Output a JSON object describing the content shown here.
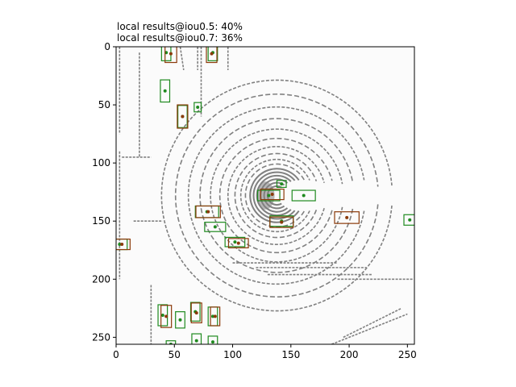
{
  "chart_data": {
    "type": "scatter",
    "title_lines": [
      "local results@iou0.5: 40%",
      "local results@iou0.7: 36%"
    ],
    "xlabel": "",
    "ylabel": "",
    "xlim": [
      0,
      256
    ],
    "ylim": [
      256,
      0
    ],
    "y_axis_inverted": true,
    "x_ticks": [
      0,
      50,
      100,
      150,
      200,
      250
    ],
    "y_ticks": [
      0,
      50,
      100,
      150,
      200,
      250
    ],
    "grid": false,
    "background_color": "#fbfbfb",
    "point_color": "#808080",
    "colors": {
      "ground_truth": "#1f8a1f",
      "prediction": "#c81e0a",
      "prediction_overlap": "#8b3a0a"
    },
    "ground_truth_boxes": [
      {
        "cx": 43,
        "cy": 5,
        "w": 8,
        "h": 14
      },
      {
        "cx": 83,
        "cy": 5,
        "w": 8,
        "h": 14
      },
      {
        "cx": 42,
        "cy": 38,
        "w": 8,
        "h": 19
      },
      {
        "cx": 70,
        "cy": 52,
        "w": 6,
        "h": 8
      },
      {
        "cx": 57,
        "cy": 60,
        "w": 8,
        "h": 19
      },
      {
        "cx": 142,
        "cy": 118,
        "w": 8,
        "h": 6
      },
      {
        "cx": 161,
        "cy": 128,
        "w": 20,
        "h": 9
      },
      {
        "cx": 131,
        "cy": 128,
        "w": 19,
        "h": 9
      },
      {
        "cx": 78,
        "cy": 142,
        "w": 20,
        "h": 10
      },
      {
        "cx": 85,
        "cy": 155,
        "w": 18,
        "h": 8
      },
      {
        "cx": 142,
        "cy": 150,
        "w": 20,
        "h": 9
      },
      {
        "cx": 252,
        "cy": 149,
        "w": 10,
        "h": 9
      },
      {
        "cx": 3,
        "cy": 170,
        "w": 13,
        "h": 9
      },
      {
        "cx": 102,
        "cy": 168,
        "w": 17,
        "h": 8
      },
      {
        "cx": 40,
        "cy": 231,
        "w": 8,
        "h": 18
      },
      {
        "cx": 55,
        "cy": 235,
        "w": 8,
        "h": 14
      },
      {
        "cx": 68,
        "cy": 228,
        "w": 8,
        "h": 16
      },
      {
        "cx": 83,
        "cy": 232,
        "w": 8,
        "h": 16
      },
      {
        "cx": 47,
        "cy": 256,
        "w": 8,
        "h": 6
      },
      {
        "cx": 69,
        "cy": 253,
        "w": 8,
        "h": 12
      },
      {
        "cx": 83,
        "cy": 254,
        "w": 8,
        "h": 10
      }
    ],
    "prediction_boxes": [
      {
        "cx": 47,
        "cy": 6,
        "w": 10,
        "h": 15
      },
      {
        "cx": 82,
        "cy": 6,
        "w": 9,
        "h": 15
      },
      {
        "cx": 57,
        "cy": 60,
        "w": 9,
        "h": 20
      },
      {
        "cx": 134,
        "cy": 127,
        "w": 20,
        "h": 9
      },
      {
        "cx": 79,
        "cy": 142,
        "w": 21,
        "h": 10
      },
      {
        "cx": 142,
        "cy": 151,
        "w": 20,
        "h": 9
      },
      {
        "cx": 198,
        "cy": 147,
        "w": 21,
        "h": 10
      },
      {
        "cx": 5,
        "cy": 170,
        "w": 14,
        "h": 9
      },
      {
        "cx": 105,
        "cy": 169,
        "w": 17,
        "h": 8
      },
      {
        "cx": 43,
        "cy": 232,
        "w": 9,
        "h": 19
      },
      {
        "cx": 69,
        "cy": 229,
        "w": 9,
        "h": 17
      },
      {
        "cx": 85,
        "cy": 232,
        "w": 8,
        "h": 16
      }
    ],
    "lidar_arcs": [
      {
        "cx": 138,
        "cy": 128,
        "r": 8,
        "a0": 60,
        "a1": 300
      },
      {
        "cx": 138,
        "cy": 128,
        "r": 11,
        "a0": 55,
        "a1": 305
      },
      {
        "cx": 138,
        "cy": 128,
        "r": 14,
        "a0": 50,
        "a1": 310
      },
      {
        "cx": 138,
        "cy": 128,
        "r": 17,
        "a0": 45,
        "a1": 315
      },
      {
        "cx": 138,
        "cy": 128,
        "r": 20,
        "a0": 40,
        "a1": 320
      },
      {
        "cx": 138,
        "cy": 128,
        "r": 23,
        "a0": 35,
        "a1": 325
      },
      {
        "cx": 138,
        "cy": 128,
        "r": 27,
        "a0": 30,
        "a1": 330
      },
      {
        "cx": 138,
        "cy": 128,
        "r": 31,
        "a0": 25,
        "a1": 335
      },
      {
        "cx": 138,
        "cy": 128,
        "r": 36,
        "a0": 20,
        "a1": 340
      },
      {
        "cx": 138,
        "cy": 128,
        "r": 42,
        "a0": 15,
        "a1": 345
      },
      {
        "cx": 138,
        "cy": 128,
        "r": 49,
        "a0": 15,
        "a1": 345
      },
      {
        "cx": 138,
        "cy": 128,
        "r": 57,
        "a0": 10,
        "a1": 350
      },
      {
        "cx": 138,
        "cy": 128,
        "r": 66,
        "a0": 10,
        "a1": 350
      },
      {
        "cx": 138,
        "cy": 128,
        "r": 76,
        "a0": 10,
        "a1": 350
      },
      {
        "cx": 138,
        "cy": 128,
        "r": 87,
        "a0": 5,
        "a1": 355
      },
      {
        "cx": 138,
        "cy": 128,
        "r": 99,
        "a0": 5,
        "a1": 355
      }
    ],
    "lidar_lines": [
      {
        "x1": 3,
        "y1": 0,
        "x2": 3,
        "y2": 75
      },
      {
        "x1": 3,
        "y1": 90,
        "x2": 3,
        "y2": 200
      },
      {
        "x1": 20,
        "y1": 5,
        "x2": 20,
        "y2": 95
      },
      {
        "x1": 5,
        "y1": 95,
        "x2": 30,
        "y2": 95
      },
      {
        "x1": 15,
        "y1": 150,
        "x2": 40,
        "y2": 150
      },
      {
        "x1": 70,
        "y1": 0,
        "x2": 70,
        "y2": 20
      },
      {
        "x1": 73,
        "y1": 0,
        "x2": 73,
        "y2": 60
      },
      {
        "x1": 96,
        "y1": 0,
        "x2": 96,
        "y2": 20
      },
      {
        "x1": 100,
        "y1": 186,
        "x2": 190,
        "y2": 186
      },
      {
        "x1": 120,
        "y1": 190,
        "x2": 215,
        "y2": 190
      },
      {
        "x1": 130,
        "y1": 196,
        "x2": 220,
        "y2": 196
      },
      {
        "x1": 190,
        "y1": 200,
        "x2": 255,
        "y2": 200
      },
      {
        "x1": 195,
        "y1": 250,
        "x2": 245,
        "y2": 225
      },
      {
        "x1": 185,
        "y1": 256,
        "x2": 250,
        "y2": 230
      },
      {
        "x1": 30,
        "y1": 205,
        "x2": 30,
        "y2": 256
      },
      {
        "x1": 55,
        "y1": 0,
        "x2": 58,
        "y2": 20
      }
    ]
  }
}
